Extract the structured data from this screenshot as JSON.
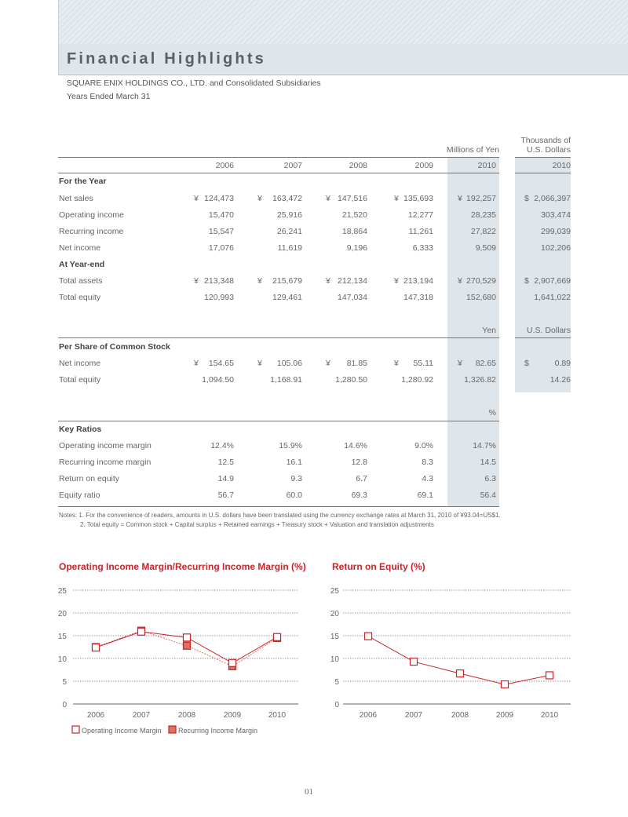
{
  "header": {
    "title": "Financial Highlights",
    "company": "SQUARE ENIX HOLDINGS CO., LTD. and Consolidated Subsidiaries",
    "period": "Years Ended March 31"
  },
  "table": {
    "unit_yen": "Millions of Yen",
    "unit_usd_line1": "Thousands of",
    "unit_usd_line2": "U.S. Dollars",
    "years": [
      "2006",
      "2007",
      "2008",
      "2009",
      "2010",
      "2010"
    ],
    "sections": [
      {
        "title": "For the Year",
        "rows": [
          {
            "label": "Net sales",
            "cells": [
              [
                "¥",
                "124,473"
              ],
              [
                "¥",
                "163,472"
              ],
              [
                "¥",
                "147,516"
              ],
              [
                "¥",
                "135,693"
              ],
              [
                "¥",
                "192,257"
              ],
              [
                "$",
                "2,066,397"
              ]
            ]
          },
          {
            "label": "Operating income",
            "cells": [
              [
                "",
                "15,470"
              ],
              [
                "",
                "25,916"
              ],
              [
                "",
                "21,520"
              ],
              [
                "",
                "12,277"
              ],
              [
                "",
                "28,235"
              ],
              [
                "",
                "303,474"
              ]
            ]
          },
          {
            "label": "Recurring income",
            "cells": [
              [
                "",
                "15,547"
              ],
              [
                "",
                "26,241"
              ],
              [
                "",
                "18,864"
              ],
              [
                "",
                "11,261"
              ],
              [
                "",
                "27,822"
              ],
              [
                "",
                "299,039"
              ]
            ]
          },
          {
            "label": "Net income",
            "cells": [
              [
                "",
                "17,076"
              ],
              [
                "",
                "11,619"
              ],
              [
                "",
                "9,196"
              ],
              [
                "",
                "6,333"
              ],
              [
                "",
                "9,509"
              ],
              [
                "",
                "102,206"
              ]
            ]
          }
        ]
      },
      {
        "title": "At Year-end",
        "rows": [
          {
            "label": "Total assets",
            "cells": [
              [
                "¥",
                "213,348"
              ],
              [
                "¥",
                "215,679"
              ],
              [
                "¥",
                "212,134"
              ],
              [
                "¥",
                "213,194"
              ],
              [
                "¥",
                "270,529"
              ],
              [
                "$",
                "2,907,669"
              ]
            ]
          },
          {
            "label": "Total equity",
            "cells": [
              [
                "",
                "120,993"
              ],
              [
                "",
                "129,461"
              ],
              [
                "",
                "147,034"
              ],
              [
                "",
                "147,318"
              ],
              [
                "",
                "152,680"
              ],
              [
                "",
                "1,641,022"
              ]
            ]
          }
        ]
      },
      {
        "unit_yen": "Yen",
        "unit_usd": "U.S. Dollars",
        "title": "Per Share of Common Stock",
        "rows": [
          {
            "label": "Net income",
            "cells": [
              [
                "¥",
                "154.65"
              ],
              [
                "¥",
                "105.06"
              ],
              [
                "¥",
                "81.85"
              ],
              [
                "¥",
                "55.11"
              ],
              [
                "¥",
                "82.65"
              ],
              [
                "$",
                "0.89"
              ]
            ]
          },
          {
            "label": "Total equity",
            "cells": [
              [
                "",
                "1,094.50"
              ],
              [
                "",
                "1,168.91"
              ],
              [
                "",
                "1,280.50"
              ],
              [
                "",
                "1,280.92"
              ],
              [
                "",
                "1,326.82"
              ],
              [
                "",
                "14.26"
              ]
            ]
          }
        ]
      },
      {
        "unit_yen": "%",
        "title": "Key Ratios",
        "rows": [
          {
            "label": "Operating income margin",
            "cells": [
              [
                "",
                "12.4%"
              ],
              [
                "",
                "15.9%"
              ],
              [
                "",
                "14.6%"
              ],
              [
                "",
                "9.0%"
              ],
              [
                "",
                "14.7%"
              ]
            ]
          },
          {
            "label": "Recurring income margin",
            "cells": [
              [
                "",
                "12.5"
              ],
              [
                "",
                "16.1"
              ],
              [
                "",
                "12.8"
              ],
              [
                "",
                "8.3"
              ],
              [
                "",
                "14.5"
              ]
            ]
          },
          {
            "label": "Return on equity",
            "cells": [
              [
                "",
                "14.9"
              ],
              [
                "",
                "9.3"
              ],
              [
                "",
                "6.7"
              ],
              [
                "",
                "4.3"
              ],
              [
                "",
                "6.3"
              ]
            ]
          },
          {
            "label": "Equity ratio",
            "cells": [
              [
                "",
                "56.7"
              ],
              [
                "",
                "60.0"
              ],
              [
                "",
                "69.3"
              ],
              [
                "",
                "69.1"
              ],
              [
                "",
                "56.4"
              ]
            ]
          }
        ]
      }
    ],
    "notes": [
      "Notes: 1. For the convenience of readers, amounts in U.S. dollars have been translated using the currency exchange rates at March 31, 2010 of ¥93.04=US$1.",
      "2. Total equity = Common stock + Capital surplus + Retained earnings + Treasury stock + Valuation and translation adjustments"
    ]
  },
  "chart_data": [
    {
      "type": "line",
      "title": "Operating Income Margin/Recurring Income Margin (%)",
      "categories": [
        "2006",
        "2007",
        "2008",
        "2009",
        "2010"
      ],
      "ylim": [
        0,
        25
      ],
      "yticks": [
        0,
        5,
        10,
        15,
        20,
        25
      ],
      "grid": true,
      "legend": "bottom-left",
      "series": [
        {
          "name": "Operating Income Margin",
          "values": [
            12.4,
            15.9,
            14.6,
            9.0,
            14.7
          ],
          "marker": "hollow-square",
          "color": "#c8262b"
        },
        {
          "name": "Recurring Income Margin",
          "values": [
            12.5,
            16.1,
            12.8,
            8.3,
            14.5
          ],
          "marker": "filled-square",
          "color": "#e0705f"
        }
      ]
    },
    {
      "type": "line",
      "title": "Return on Equity (%)",
      "categories": [
        "2006",
        "2007",
        "2008",
        "2009",
        "2010"
      ],
      "ylim": [
        0,
        25
      ],
      "yticks": [
        0,
        5,
        10,
        15,
        20,
        25
      ],
      "grid": true,
      "series": [
        {
          "values": [
            14.9,
            9.3,
            6.7,
            4.3,
            6.3
          ],
          "marker": "hollow-square",
          "color": "#c8262b"
        }
      ]
    }
  ],
  "page_number": "01"
}
